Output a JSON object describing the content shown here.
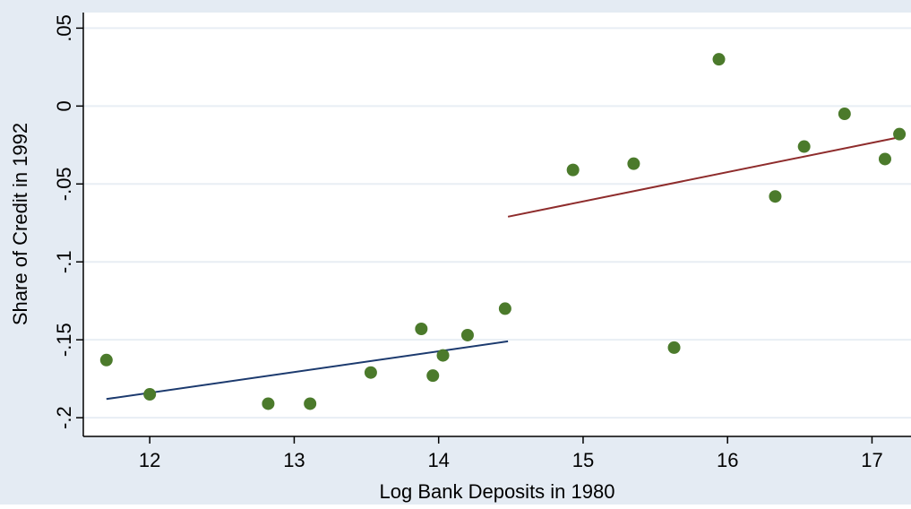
{
  "chart_data": {
    "type": "scatter",
    "xlabel": "Log Bank Deposits in 1980",
    "ylabel": "Share of Credit in 1992",
    "xlim": [
      11.54,
      17.27
    ],
    "ylim": [
      -0.212,
      0.06
    ],
    "xticks": [
      12,
      13,
      14,
      15,
      16,
      17
    ],
    "yticks": [
      {
        "value": 0.05,
        "label": ".05"
      },
      0,
      {
        "value": -0.05,
        "label": "-.05"
      },
      {
        "value": -0.1,
        "label": "-.1"
      },
      {
        "value": -0.15,
        "label": "-.15"
      },
      {
        "value": -0.2,
        "label": "-.2"
      }
    ],
    "grid": true,
    "points": {
      "color": "#4b7a2b",
      "x": [
        11.7,
        12.0,
        12.82,
        13.11,
        13.53,
        13.88,
        13.96,
        14.03,
        14.2,
        14.46,
        14.93,
        15.35,
        15.63,
        15.94,
        16.33,
        16.53,
        16.81,
        17.09,
        17.19
      ],
      "y": [
        -0.163,
        -0.185,
        -0.191,
        -0.191,
        -0.171,
        -0.143,
        -0.173,
        -0.16,
        -0.147,
        -0.13,
        -0.041,
        -0.037,
        -0.155,
        0.03,
        -0.058,
        -0.026,
        -0.005,
        -0.034,
        -0.018
      ]
    },
    "fits": [
      {
        "color": "#1c3a6e",
        "x": [
          11.7,
          14.48
        ],
        "y": [
          -0.188,
          -0.151
        ]
      },
      {
        "color": "#8e2c2c",
        "x": [
          14.48,
          17.19
        ],
        "y": [
          -0.071,
          -0.02
        ]
      }
    ]
  }
}
